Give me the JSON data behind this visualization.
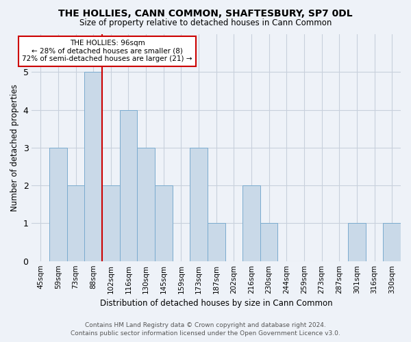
{
  "title": "THE HOLLIES, CANN COMMON, SHAFTESBURY, SP7 0DL",
  "subtitle": "Size of property relative to detached houses in Cann Common",
  "xlabel": "Distribution of detached houses by size in Cann Common",
  "ylabel": "Number of detached properties",
  "footer_line1": "Contains HM Land Registry data © Crown copyright and database right 2024.",
  "footer_line2": "Contains public sector information licensed under the Open Government Licence v3.0.",
  "categories": [
    "45sqm",
    "59sqm",
    "73sqm",
    "88sqm",
    "102sqm",
    "116sqm",
    "130sqm",
    "145sqm",
    "159sqm",
    "173sqm",
    "187sqm",
    "202sqm",
    "216sqm",
    "230sqm",
    "244sqm",
    "259sqm",
    "273sqm",
    "287sqm",
    "301sqm",
    "316sqm",
    "330sqm"
  ],
  "values": [
    0,
    3,
    2,
    5,
    2,
    4,
    3,
    2,
    0,
    3,
    1,
    0,
    2,
    1,
    0,
    0,
    0,
    0,
    1,
    0,
    1
  ],
  "bar_color": "#c9d9e8",
  "bar_edge_color": "#7aabcf",
  "grid_color": "#c8d0dc",
  "background_color": "#eef2f8",
  "vline_color": "#cc0000",
  "vline_x_index": 4,
  "annotation_line1": "THE HOLLIES: 96sqm",
  "annotation_line2": "← 28% of detached houses are smaller (8)",
  "annotation_line3": "72% of semi-detached houses are larger (21) →",
  "annotation_box_color": "#ffffff",
  "annotation_box_edge": "#cc0000",
  "ylim": [
    0,
    6
  ],
  "yticks": [
    0,
    1,
    2,
    3,
    4,
    5,
    6
  ]
}
